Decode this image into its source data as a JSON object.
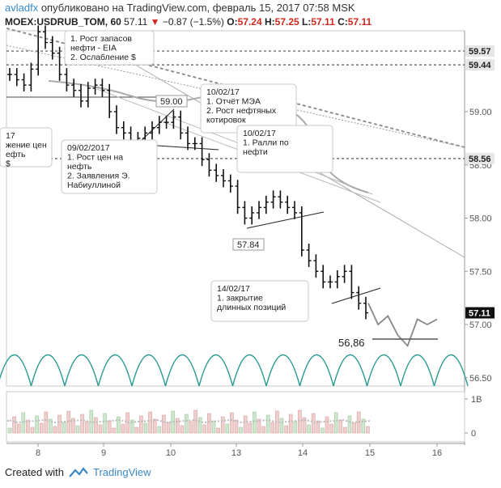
{
  "header": {
    "author": "avladfx",
    "published": "опубликовано на TradingView.com, февраль 15, 2017 07:58 MSK",
    "symbol": "MOEX:USDRUB_TOM, 60",
    "last": "57.11",
    "arrow": "▼",
    "change": "−0.87 (−1.5%)",
    "o_label": "O:",
    "o_value": "57.24",
    "h_label": "H:",
    "h_value": "57.25",
    "l_label": "L:",
    "l_value": "57.11",
    "c_label": "C:",
    "c_value": "57.11"
  },
  "footer": {
    "created_with": "Created with",
    "brand": "TradingView"
  },
  "colors": {
    "down": "#d0281e",
    "brand": "#3a88c8",
    "arc": "#2a9a92",
    "last_tag": "#111111"
  },
  "chart_data": {
    "type": "candlestick",
    "x_ticks": [
      "8",
      "9",
      "10",
      "13",
      "14",
      "15",
      "16"
    ],
    "y_ticks": [
      "59.00",
      "58.50",
      "58.00",
      "57.50",
      "57.00",
      "56.50"
    ],
    "price_tags": [
      "59.57",
      "59.44",
      "58.56",
      "57.11"
    ],
    "volume_ticks": [
      "1B",
      "0"
    ],
    "ylim": [
      56.4,
      59.75
    ],
    "price_bars": [
      59.35,
      59.3,
      59.25,
      59.4,
      59.75,
      59.65,
      59.55,
      59.35,
      59.25,
      59.2,
      59.1,
      59.22,
      59.25,
      59.2,
      59.0,
      58.85,
      58.8,
      58.7,
      58.75,
      58.8,
      58.85,
      58.9,
      58.9,
      58.95,
      58.8,
      58.7,
      58.7,
      58.55,
      58.45,
      58.4,
      58.35,
      58.3,
      58.1,
      58.0,
      58.05,
      58.1,
      58.15,
      58.2,
      58.15,
      58.1,
      58.05,
      57.7,
      57.6,
      57.5,
      57.4,
      57.4,
      57.45,
      57.5,
      57.3,
      57.2,
      57.11
    ],
    "forecast_path": [
      57.2,
      57.0,
      57.08,
      56.9,
      56.8,
      57.05,
      57.0,
      57.05
    ],
    "forecast_level": "56,86",
    "price_labels": [
      "59.00",
      "57.84"
    ],
    "notes": [
      {
        "lines": [
          "1. Рост запасов",
          "нефти - EIA",
          "2. Ослабление $"
        ]
      },
      {
        "lines": [
          "10/02/17",
          "1. Отчёт МЭА",
          "2. Рост нефтяных",
          "котировок"
        ]
      },
      {
        "lines": [
          "10/02/17",
          "1. Ралли по",
          "нефти"
        ]
      },
      {
        "lines": [
          "09/02/2017",
          "1. Рост цен на",
          "нефть",
          "2. Заявления Э.",
          "Набиуллиной"
        ]
      },
      {
        "lines": [
          "17",
          "жение цен",
          "ефть",
          "$"
        ]
      },
      {
        "lines": [
          "14/02/17",
          "1. закрытие",
          "длинных позиций"
        ]
      }
    ]
  }
}
